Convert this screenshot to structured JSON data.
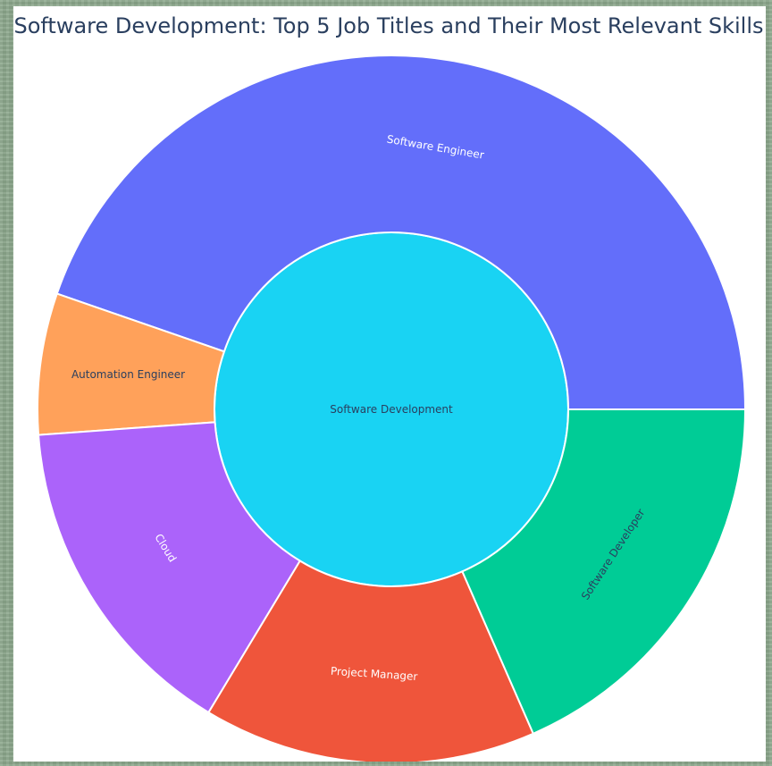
{
  "chart_data": {
    "type": "sunburst",
    "title": "Software Development: Top 5 Job Titles and Their Most Relevant Skills",
    "root": {
      "label": "Software Development",
      "color": "#19d3f3"
    },
    "children": [
      {
        "label": "Software Engineer",
        "value": 48.5,
        "color": "#636efa"
      },
      {
        "label": "Automation Engineer",
        "value": 7.0,
        "color": "#ffa15a"
      },
      {
        "label": "Cloud",
        "value": 16.5,
        "color": "#ab63fa"
      },
      {
        "label": "Project Manager",
        "value": 16.5,
        "color": "#ef553b"
      },
      {
        "label": "Software Developer",
        "value": 20.0,
        "color": "#00cc96"
      }
    ]
  }
}
